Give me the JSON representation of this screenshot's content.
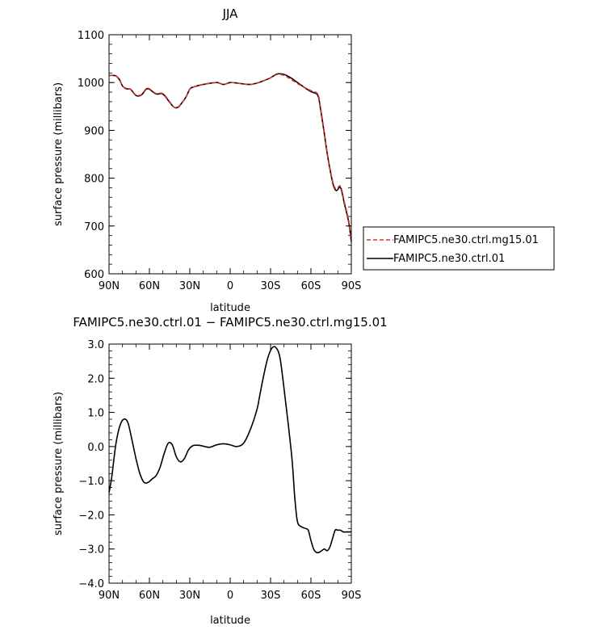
{
  "chart_data": [
    {
      "type": "line",
      "title": "JJA",
      "xlabel": "latitude",
      "ylabel": "surface pressure (millibars)",
      "xlim": [
        -90,
        90
      ],
      "ylim": [
        600,
        1100
      ],
      "x_tick_values": [
        -90,
        -60,
        -30,
        0,
        30,
        60,
        90
      ],
      "x_tick_labels": [
        "90N",
        "60N",
        "30N",
        "0",
        "30S",
        "60S",
        "90S"
      ],
      "y_tick_values": [
        600,
        700,
        800,
        900,
        1000,
        1100
      ],
      "y_tick_labels": [
        "600",
        "700",
        "800",
        "900",
        "1000",
        "1100"
      ],
      "legend_position": "right",
      "series": [
        {
          "name": "FAMIPC5.ne30.ctrl.mg15.01",
          "color": "#e0302a",
          "dash": "dashed",
          "x": [
            -90,
            -85,
            -82,
            -80,
            -77,
            -74,
            -70,
            -66,
            -62,
            -59,
            -55,
            -50,
            -45,
            -42,
            -39,
            -36,
            -33,
            -30,
            -28,
            -20,
            -10,
            -5,
            0,
            5,
            10,
            15,
            20,
            25,
            30,
            35,
            40,
            45,
            50,
            55,
            60,
            65,
            67,
            70,
            72,
            75,
            77,
            79,
            82,
            85,
            88,
            90
          ],
          "y": [
            1015,
            1014,
            1004,
            993,
            986,
            986,
            974,
            975,
            988,
            985,
            977,
            977,
            960,
            949,
            947,
            957,
            969,
            986,
            990,
            996,
            1000,
            996,
            1000,
            999,
            997,
            996,
            999,
            1004,
            1010,
            1017,
            1015,
            1007,
            998,
            990,
            983,
            976,
            950,
            895,
            855,
            808,
            785,
            777,
            783,
            748,
            712,
            669
          ]
        },
        {
          "name": "FAMIPC5.ne30.ctrl.01",
          "color": "#000000",
          "dash": "solid",
          "x": [
            -90,
            -85,
            -82,
            -80,
            -77,
            -74,
            -70,
            -66,
            -62,
            -59,
            -55,
            -50,
            -45,
            -42,
            -39,
            -36,
            -33,
            -30,
            -28,
            -20,
            -10,
            -5,
            0,
            5,
            10,
            15,
            20,
            25,
            30,
            35,
            40,
            45,
            50,
            55,
            60,
            65,
            67,
            70,
            72,
            75,
            77,
            79,
            82,
            85,
            88,
            90
          ],
          "y": [
            1015,
            1014,
            1005,
            993,
            987,
            986,
            973,
            974,
            987,
            984,
            976,
            976,
            959,
            949,
            948,
            957,
            969,
            986,
            990,
            996,
            1000,
            996,
            1000,
            999,
            997,
            996,
            999,
            1004,
            1010,
            1018,
            1017,
            1010,
            1000,
            990,
            981,
            974,
            947,
            892,
            853,
            806,
            782,
            774,
            780,
            745,
            709,
            667
          ]
        }
      ]
    },
    {
      "type": "line",
      "title": "FAMIPC5.ne30.ctrl.01 − FAMIPC5.ne30.ctrl.mg15.01",
      "xlabel": "latitude",
      "ylabel": "surface pressure (millibars)",
      "xlim": [
        -90,
        90
      ],
      "ylim": [
        -4.0,
        3.0
      ],
      "x_tick_values": [
        -90,
        -60,
        -30,
        0,
        30,
        60,
        90
      ],
      "x_tick_labels": [
        "90N",
        "60N",
        "30N",
        "0",
        "30S",
        "60S",
        "90S"
      ],
      "y_tick_values": [
        -4,
        -3,
        -2,
        -1,
        0,
        1,
        2,
        3
      ],
      "y_tick_labels": [
        "−4.0",
        "−3.0",
        "−2.0",
        "−1.0",
        "0.0",
        "1.0",
        "2.0",
        "3.0"
      ],
      "series": [
        {
          "color": "#000000",
          "dash": "solid",
          "x": [
            -90,
            -88,
            -85,
            -82,
            -79,
            -76,
            -73,
            -70,
            -67,
            -64,
            -61,
            -58,
            -55,
            -52,
            -49,
            -46,
            -43,
            -40,
            -37,
            -34,
            -31,
            -28,
            -25,
            -22,
            -19,
            -15,
            -10,
            -5,
            0,
            5,
            10,
            15,
            20,
            22,
            25,
            28,
            31,
            34,
            37,
            40,
            43,
            46,
            48,
            50,
            53,
            56,
            58,
            60,
            62,
            64,
            66,
            68,
            70,
            72,
            74,
            76,
            78,
            80,
            82,
            84,
            86,
            88,
            90
          ],
          "y": [
            -1.35,
            -0.9,
            0.05,
            0.6,
            0.8,
            0.7,
            0.2,
            -0.35,
            -0.8,
            -1.05,
            -1.05,
            -0.95,
            -0.85,
            -0.6,
            -0.2,
            0.1,
            0.05,
            -0.3,
            -0.45,
            -0.35,
            -0.1,
            0.02,
            0.04,
            0.03,
            0.0,
            -0.02,
            0.05,
            0.08,
            0.05,
            0.0,
            0.1,
            0.5,
            1.1,
            1.5,
            2.1,
            2.6,
            2.88,
            2.9,
            2.6,
            1.7,
            0.7,
            -0.4,
            -1.5,
            -2.2,
            -2.35,
            -2.4,
            -2.45,
            -2.75,
            -3.0,
            -3.1,
            -3.1,
            -3.05,
            -3.0,
            -3.05,
            -2.95,
            -2.7,
            -2.45,
            -2.45,
            -2.45,
            -2.5,
            -2.5,
            -2.5,
            -2.5
          ]
        }
      ]
    }
  ]
}
